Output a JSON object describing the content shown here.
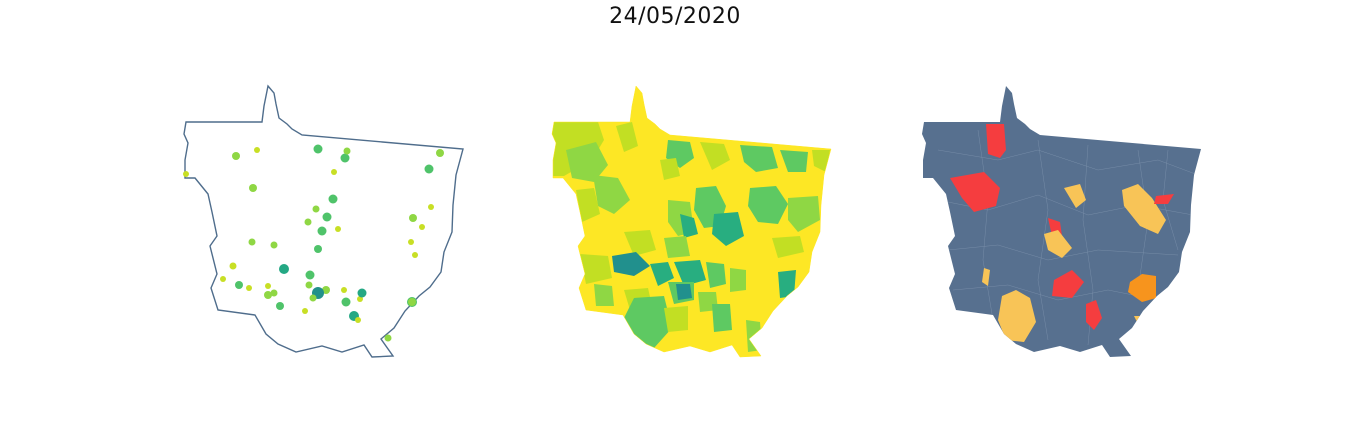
{
  "title": "24/05/2020",
  "colors": {
    "outline": "#4f6d8c",
    "dot_yellow": "#c8df25",
    "dot_lightgreen": "#8fd744",
    "dot_green": "#4fc36a",
    "dot_teal": "#24a884",
    "dot_darkteal": "#22918a",
    "choro_yellow": "#fde725",
    "choro_lime": "#c2df23",
    "choro_green": "#8fd744",
    "choro_midgreen": "#5ec962",
    "choro_teal": "#28ae80",
    "choro_darkteal": "#21908d",
    "risk_base": "#57708f",
    "risk_red": "#f53d3f",
    "risk_yellow": "#f8c457",
    "risk_orange": "#f7941d"
  }
}
